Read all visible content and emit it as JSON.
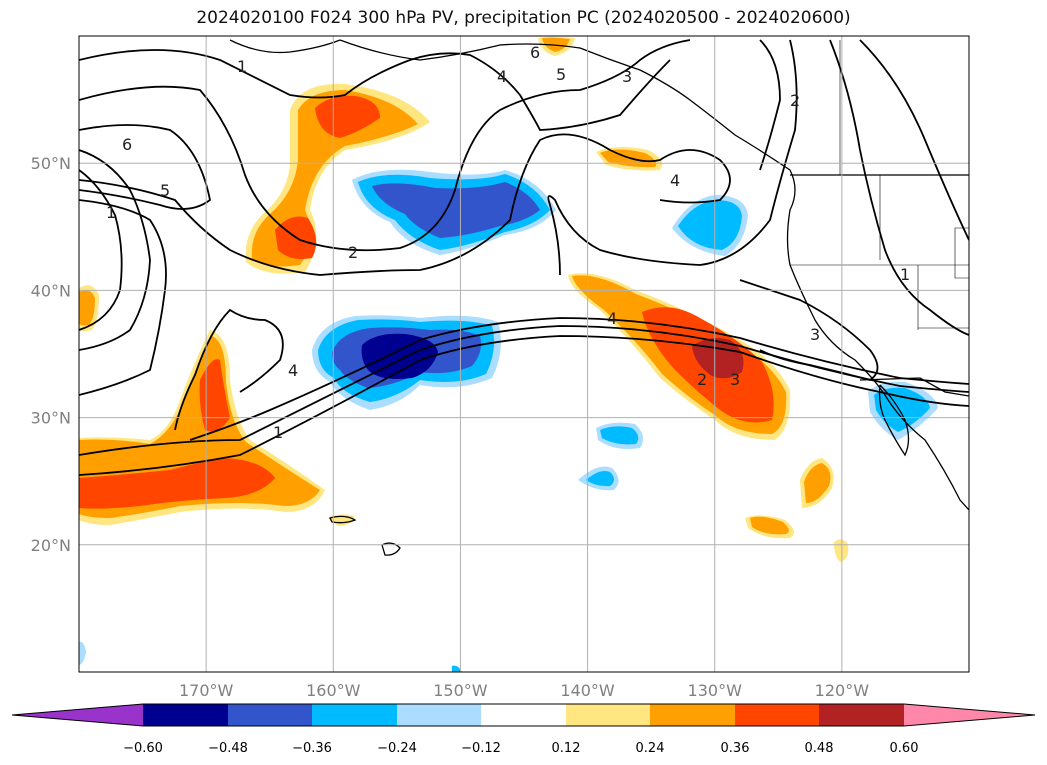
{
  "title": "2024020100 F024 300 hPa PV, precipitation PC (2024020500 - 2024020600)",
  "map": {
    "extent": {
      "lon": [
        -180,
        -110
      ],
      "lat": [
        10,
        60
      ]
    },
    "lat_ticks": [
      {
        "value": 20,
        "label": "20°N"
      },
      {
        "value": 30,
        "label": "30°N"
      },
      {
        "value": 40,
        "label": "40°N"
      },
      {
        "value": 50,
        "label": "50°N"
      }
    ],
    "lon_ticks": [
      {
        "value": -170,
        "label": "170°W"
      },
      {
        "value": -160,
        "label": "160°W"
      },
      {
        "value": -150,
        "label": "150°W"
      },
      {
        "value": -140,
        "label": "140°W"
      },
      {
        "value": -130,
        "label": "130°W"
      },
      {
        "value": -120,
        "label": "120°W"
      }
    ],
    "gridlines": true,
    "contour_labels": [
      "1",
      "2",
      "3",
      "4",
      "5",
      "6"
    ]
  },
  "colorbar": {
    "colors": {
      "extend_min": "#9933cc",
      "neg060_048": "#000090",
      "neg048_036": "#3355cc",
      "neg036_024": "#00bbff",
      "neg024_012": "#aaddff",
      "neutral": "#ffffff",
      "pos012_024": "#ffe680",
      "pos024_036": "#ffa000",
      "pos036_048": "#ff4500",
      "pos048_060": "#b22222",
      "extend_max": "#ff88aa"
    },
    "labels": [
      "−0.60",
      "−0.48",
      "−0.36",
      "−0.24",
      "−0.12",
      "0.12",
      "0.24",
      "0.36",
      "0.48",
      "0.60"
    ]
  }
}
